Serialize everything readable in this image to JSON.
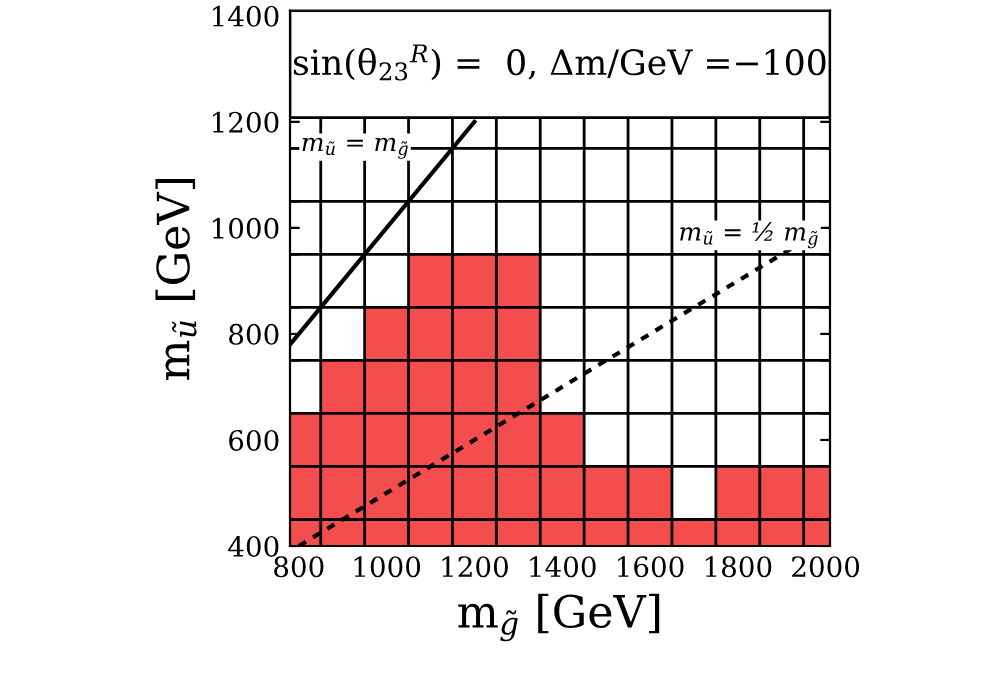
{
  "chart_data": {
    "type": "bar",
    "title": "sin(θ$_{23}$$^{R}$) =  0, Δm/GeV =−100",
    "xlabel": "m$_{g̃}$ [GeV]",
    "ylabel": "m$_{ũ}$ [GeV]",
    "x": [
      800,
      900,
      1000,
      1100,
      1200,
      1300,
      1400,
      1500,
      1600,
      1700,
      1800,
      1900,
      2000
    ],
    "series": [
      {
        "color": "#f44d4d",
        "base": [
          400,
          400,
          400,
          400,
          400,
          400,
          400,
          400,
          400,
          400,
          400,
          400,
          400
        ],
        "values": [
          250,
          350,
          450,
          550,
          550,
          550,
          250,
          150,
          150,
          50,
          150,
          150,
          150
        ]
      },
      {
        "type": "line",
        "color": "#000000",
        "line_style": "solid",
        "x": [
          780,
          1200
        ],
        "values": [
          780,
          1200
        ]
      },
      {
        "type": "line",
        "color": "#000000",
        "line_style": "dashed",
        "x": [
          800,
          2000
        ],
        "values": [
          400,
          1000
        ]
      }
    ],
    "annotations": [
      "m$_{ũ}$ = m$_{g̃}$",
      "m$_{ũ}$ = ½ m$_{g̃}$"
    ],
    "xlim": [
      780,
      2010
    ],
    "ylim": [
      400,
      1410
    ],
    "xticks": [
      800,
      1000,
      1200,
      1400,
      1600,
      1800,
      2000,
      {
        "value": 850,
        "label": null
      },
      {
        "value": 950,
        "label": null
      },
      {
        "value": 1050,
        "label": null
      },
      {
        "value": 1150,
        "label": null
      },
      {
        "value": 1250,
        "label": null
      },
      {
        "value": 1350,
        "label": null
      },
      {
        "value": 1450,
        "label": null
      },
      {
        "value": 1550,
        "label": null
      },
      {
        "value": 1650,
        "label": null
      },
      {
        "value": 1750,
        "label": null
      },
      {
        "value": 1850,
        "label": null
      },
      {
        "value": 1950,
        "label": null
      }
    ],
    "yticks": [
      400,
      600,
      800,
      1000,
      1200,
      1400,
      {
        "value": 450,
        "label": null
      },
      {
        "value": 550,
        "label": null
      },
      {
        "value": 650,
        "label": null
      },
      {
        "value": 750,
        "label": null
      },
      {
        "value": 850,
        "label": null
      },
      {
        "value": 950,
        "label": null
      },
      {
        "value": 1050,
        "label": null
      },
      {
        "value": 1150,
        "label": null
      }
    ],
    "grid": true
  }
}
